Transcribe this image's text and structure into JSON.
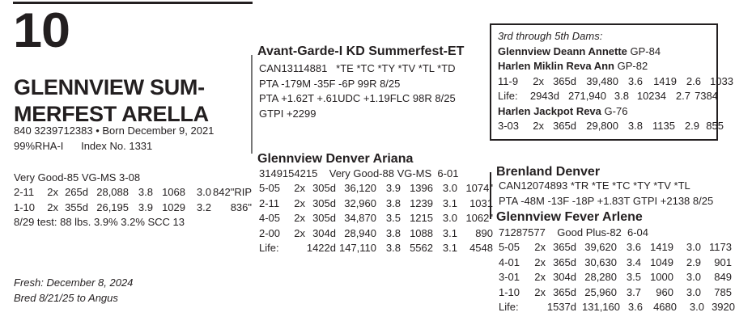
{
  "lot_number": "10",
  "animal": {
    "name_line1": "GLENNVIEW SUM-",
    "name_line2": "MERFEST ARELLA",
    "id_born": "840 3239712383  •  Born December 9, 2021",
    "rha_index": "99%RHA-I      Index No. 1331",
    "classification": "Very Good-85 VG-MS  3-08",
    "records": [
      [
        "2-11",
        "2x",
        "265d",
        "28,088",
        "3.8",
        "1068",
        "3.0",
        "842\"RIP"
      ],
      [
        "1-10",
        "2x",
        "355d",
        "26,195",
        "3.9",
        "1029",
        "3.2",
        "836\""
      ]
    ],
    "test": "8/29 test: 88 lbs. 3.9% 3.2% SCC 13",
    "fresh": "Fresh:  December 8, 2024",
    "bred": "Bred 8/21/25 to Angus"
  },
  "sire": {
    "name": "Avant-Garde-I KD Summerfest-ET",
    "lines": [
      "CAN13114881   *TE *TC *TY *TV *TL *TD",
      "PTA -179M -35F -6P 99R 8/25",
      "PTA +1.62T +.61UDC +1.19FLC 98R 8/25",
      "GTPI +2299"
    ]
  },
  "dam": {
    "name": "Glennview Denver Ariana",
    "id_class": "3149154215    Very Good-88 VG-MS  6-01",
    "records": [
      [
        "5-05",
        "2x",
        "305d",
        "36,120",
        "3.9",
        "1396",
        "3.0",
        "1074\""
      ],
      [
        "2-11",
        "2x",
        "305d",
        "32,960",
        "3.8",
        "1239",
        "3.1",
        "1031"
      ],
      [
        "4-05",
        "2x",
        "305d",
        "34,870",
        "3.5",
        "1215",
        "3.0",
        "1062\""
      ],
      [
        "2-00",
        "2x",
        "304d",
        "28,940",
        "3.8",
        "1088",
        "3.1",
        "890"
      ]
    ],
    "life": [
      "Life:",
      "1422d",
      "147,110",
      "3.8",
      "5562",
      "3.1",
      "4548"
    ]
  },
  "dams_box": {
    "title": "3rd through 5th Dams:",
    "dam3": {
      "name": "Glennview Deann Annette",
      "score": "GP-84"
    },
    "dam4": {
      "name": "Harlen Miklin Reva Ann",
      "score": "GP-82",
      "record": [
        "11-9",
        "2x",
        "365d",
        "39,480",
        "3.6",
        "1419",
        "2.6",
        "1033"
      ],
      "life": [
        "Life:",
        "2943d",
        "271,940",
        "3.8",
        "10234",
        "2.7",
        "7384"
      ]
    },
    "dam5": {
      "name": "Harlen Jackpot Reva",
      "score": "G-76",
      "record": [
        "3-03",
        "2x",
        "365d",
        "29,800",
        "3.8",
        "1135",
        "2.9",
        "855"
      ]
    }
  },
  "maternal_grandsire": {
    "name": "Brenland Denver",
    "lines": [
      "CAN12074893  *TR *TE *TC *TY *TV *TL",
      "PTA -48M -13F -18P +1.83T GTPI +2138 8/25"
    ]
  },
  "maternal_granddam": {
    "name": "Glennview Fever Arlene",
    "id_class": "71287577    Good Plus-82  6-04",
    "records": [
      [
        "5-05",
        "2x",
        "365d",
        "39,620",
        "3.6",
        "1419",
        "3.0",
        "1173"
      ],
      [
        "4-01",
        "2x",
        "365d",
        "30,630",
        "3.4",
        "1049",
        "2.9",
        "901"
      ],
      [
        "3-01",
        "2x",
        "304d",
        "28,280",
        "3.5",
        "1000",
        "3.0",
        "849"
      ],
      [
        "1-10",
        "2x",
        "365d",
        "25,960",
        "3.7",
        "960",
        "3.0",
        "785"
      ]
    ],
    "life": [
      "Life:",
      "1537d",
      "131,160",
      "3.6",
      "4680",
      "3.0",
      "3920"
    ]
  }
}
